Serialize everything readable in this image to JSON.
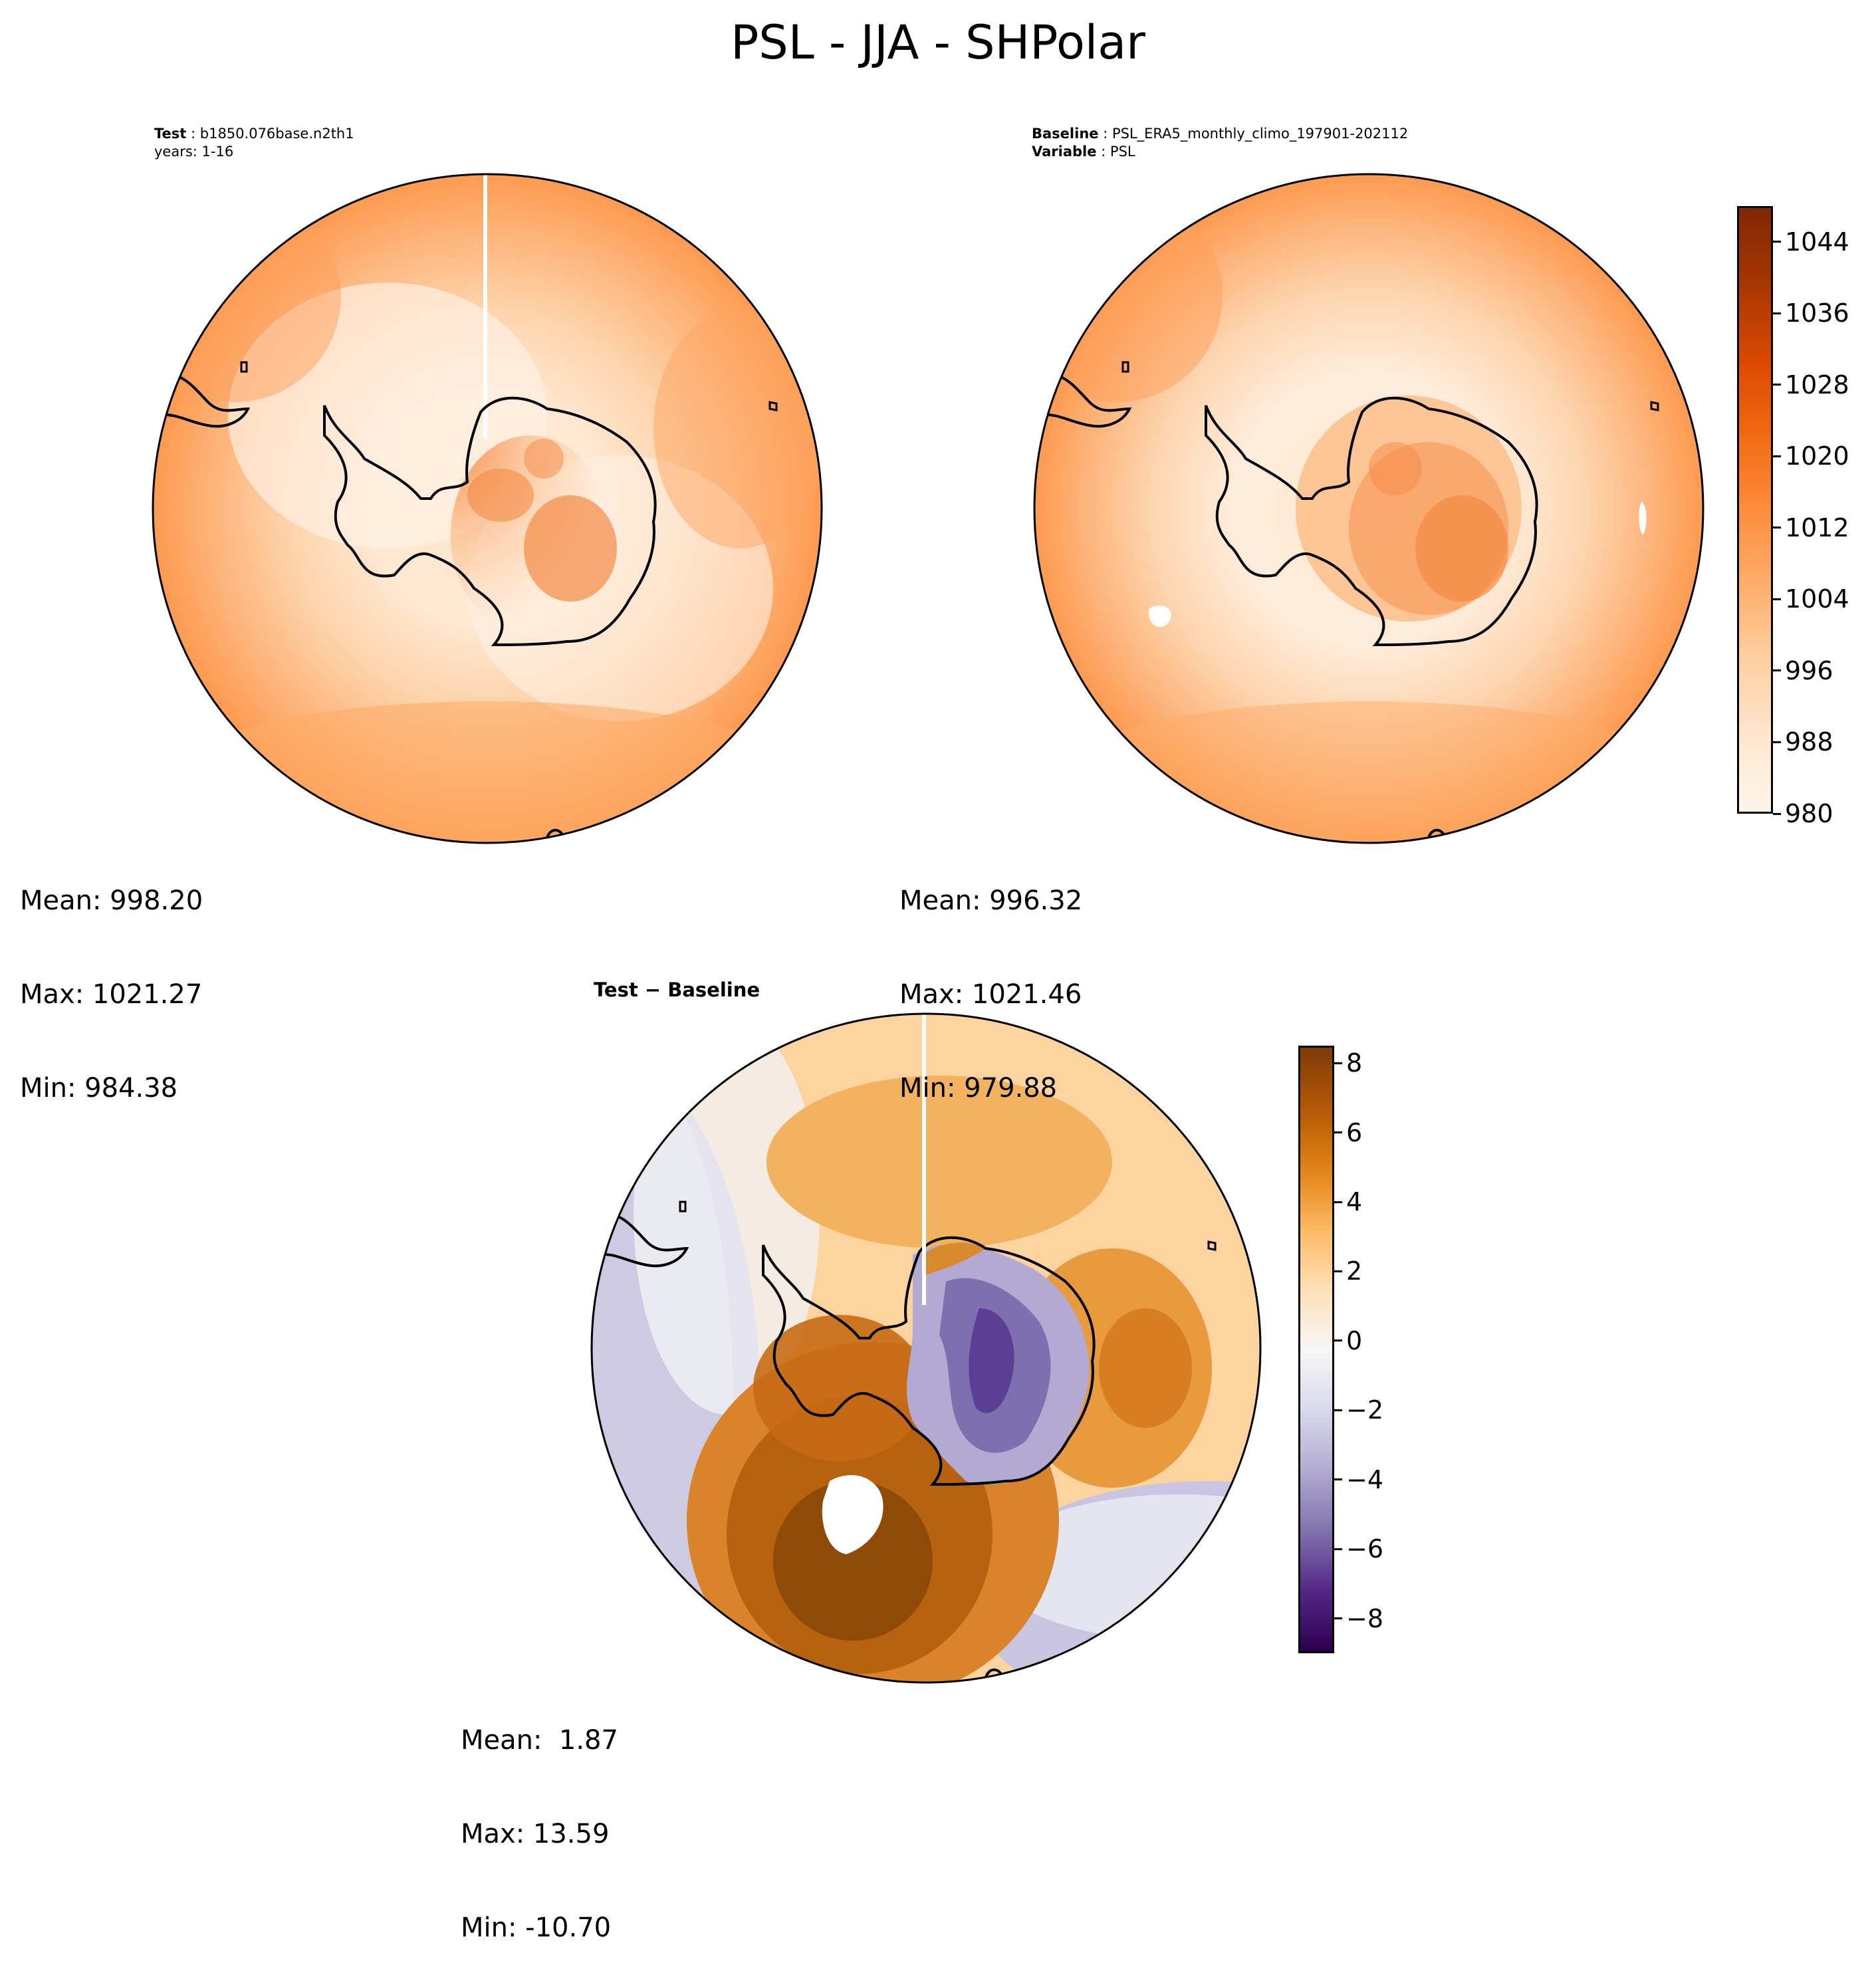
{
  "figure_title": "PSL - JJA - SHPolar",
  "panels": {
    "test": {
      "label": "Test",
      "case": "b1850.076base.n2th1",
      "years": "years: 1-16",
      "stats": {
        "mean": "Mean: 998.20",
        "max": "Max: 1021.27",
        "min": "Min: 984.38"
      }
    },
    "baseline": {
      "label": "Baseline",
      "case": "PSL_ERA5_monthly_climo_197901-202112",
      "variable_label": "Variable",
      "variable": "PSL",
      "stats": {
        "mean": "Mean: 996.32",
        "max": "Max: 1021.46",
        "min": "Min: 979.88"
      }
    },
    "diff": {
      "title": "Test − Baseline",
      "stats": {
        "mean": "Mean:  1.87",
        "max": "Max: 13.59",
        "min": "Min: -10.70"
      }
    }
  },
  "colorbars": {
    "field": {
      "colormap": "Oranges",
      "range": [
        980,
        1048
      ],
      "ticks": [
        "980",
        "988",
        "996",
        "1004",
        "1012",
        "1020",
        "1028",
        "1036",
        "1044"
      ],
      "tick_values": [
        980,
        988,
        996,
        1004,
        1012,
        1020,
        1028,
        1036,
        1044
      ]
    },
    "diff": {
      "colormap": "PuOr_r",
      "range": [
        -9,
        8.5
      ],
      "ticks": [
        "−8",
        "−6",
        "−4",
        "−2",
        "0",
        "2",
        "4",
        "6",
        "8"
      ],
      "tick_values": [
        -8,
        -6,
        -4,
        -2,
        0,
        2,
        4,
        6,
        8
      ]
    }
  },
  "colors": {
    "oranges": [
      "#fff5eb",
      "#fee6ce",
      "#fdd0a2",
      "#fdae6b",
      "#fd8d3c",
      "#f16913",
      "#d94801",
      "#a63603",
      "#7f2704"
    ],
    "puor": [
      "#2d004b",
      "#542788",
      "#8073ac",
      "#b2abd2",
      "#d8daeb",
      "#f7f7f7",
      "#fee0b6",
      "#fdb863",
      "#e08214",
      "#b35806",
      "#7f3b08"
    ]
  }
}
